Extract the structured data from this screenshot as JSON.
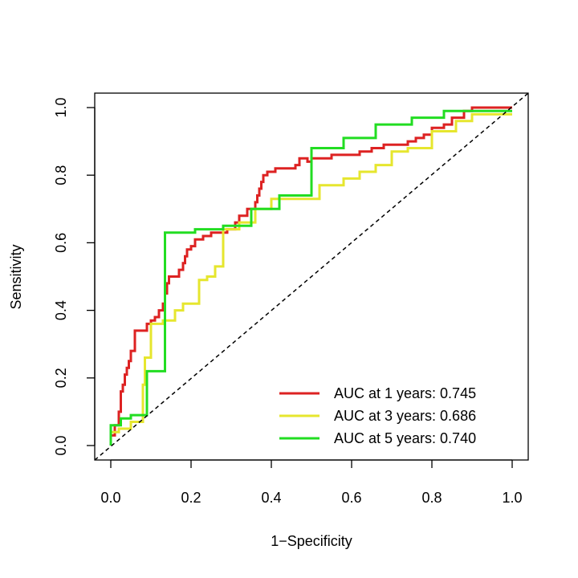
{
  "chart_data": {
    "type": "line",
    "title": "",
    "xlabel": "1−Specificity",
    "ylabel": "Sensitivity",
    "xlim": [
      0,
      1
    ],
    "ylim": [
      0,
      1
    ],
    "x_ticks": [
      "0.0",
      "0.2",
      "0.4",
      "0.6",
      "0.8",
      "1.0"
    ],
    "y_ticks": [
      "0.0",
      "0.2",
      "0.4",
      "0.6",
      "0.8",
      "1.0"
    ],
    "diagonal": true,
    "legend_position": "bottom-right",
    "series": [
      {
        "name": "AUC at 1 years: 0.745",
        "color": "#dd2222",
        "points": [
          [
            0,
            0
          ],
          [
            0,
            0.03
          ],
          [
            0.01,
            0.03
          ],
          [
            0.01,
            0.06
          ],
          [
            0.02,
            0.06
          ],
          [
            0.02,
            0.1
          ],
          [
            0.025,
            0.1
          ],
          [
            0.025,
            0.16
          ],
          [
            0.03,
            0.16
          ],
          [
            0.03,
            0.18
          ],
          [
            0.035,
            0.18
          ],
          [
            0.035,
            0.21
          ],
          [
            0.04,
            0.21
          ],
          [
            0.04,
            0.23
          ],
          [
            0.045,
            0.23
          ],
          [
            0.045,
            0.25
          ],
          [
            0.05,
            0.25
          ],
          [
            0.05,
            0.28
          ],
          [
            0.06,
            0.28
          ],
          [
            0.06,
            0.34
          ],
          [
            0.09,
            0.34
          ],
          [
            0.09,
            0.36
          ],
          [
            0.1,
            0.36
          ],
          [
            0.1,
            0.37
          ],
          [
            0.11,
            0.37
          ],
          [
            0.11,
            0.38
          ],
          [
            0.12,
            0.38
          ],
          [
            0.12,
            0.4
          ],
          [
            0.13,
            0.4
          ],
          [
            0.13,
            0.42
          ],
          [
            0.135,
            0.42
          ],
          [
            0.135,
            0.45
          ],
          [
            0.14,
            0.45
          ],
          [
            0.14,
            0.48
          ],
          [
            0.145,
            0.48
          ],
          [
            0.145,
            0.5
          ],
          [
            0.17,
            0.5
          ],
          [
            0.17,
            0.52
          ],
          [
            0.18,
            0.52
          ],
          [
            0.18,
            0.54
          ],
          [
            0.185,
            0.54
          ],
          [
            0.185,
            0.56
          ],
          [
            0.19,
            0.56
          ],
          [
            0.19,
            0.58
          ],
          [
            0.2,
            0.58
          ],
          [
            0.2,
            0.59
          ],
          [
            0.21,
            0.59
          ],
          [
            0.21,
            0.61
          ],
          [
            0.23,
            0.61
          ],
          [
            0.23,
            0.62
          ],
          [
            0.25,
            0.62
          ],
          [
            0.25,
            0.63
          ],
          [
            0.29,
            0.63
          ],
          [
            0.29,
            0.64
          ],
          [
            0.31,
            0.64
          ],
          [
            0.31,
            0.66
          ],
          [
            0.32,
            0.66
          ],
          [
            0.32,
            0.68
          ],
          [
            0.34,
            0.68
          ],
          [
            0.34,
            0.7
          ],
          [
            0.36,
            0.7
          ],
          [
            0.36,
            0.72
          ],
          [
            0.365,
            0.72
          ],
          [
            0.365,
            0.74
          ],
          [
            0.37,
            0.74
          ],
          [
            0.37,
            0.76
          ],
          [
            0.375,
            0.76
          ],
          [
            0.375,
            0.78
          ],
          [
            0.38,
            0.78
          ],
          [
            0.38,
            0.8
          ],
          [
            0.39,
            0.8
          ],
          [
            0.39,
            0.81
          ],
          [
            0.41,
            0.81
          ],
          [
            0.41,
            0.82
          ],
          [
            0.46,
            0.82
          ],
          [
            0.46,
            0.83
          ],
          [
            0.47,
            0.83
          ],
          [
            0.47,
            0.85
          ],
          [
            0.49,
            0.85
          ],
          [
            0.49,
            0.84
          ],
          [
            0.5,
            0.84
          ],
          [
            0.5,
            0.85
          ],
          [
            0.55,
            0.85
          ],
          [
            0.55,
            0.86
          ],
          [
            0.62,
            0.86
          ],
          [
            0.62,
            0.87
          ],
          [
            0.65,
            0.87
          ],
          [
            0.65,
            0.88
          ],
          [
            0.68,
            0.88
          ],
          [
            0.68,
            0.89
          ],
          [
            0.74,
            0.89
          ],
          [
            0.74,
            0.9
          ],
          [
            0.76,
            0.9
          ],
          [
            0.76,
            0.91
          ],
          [
            0.78,
            0.91
          ],
          [
            0.78,
            0.92
          ],
          [
            0.8,
            0.92
          ],
          [
            0.8,
            0.94
          ],
          [
            0.83,
            0.94
          ],
          [
            0.83,
            0.95
          ],
          [
            0.85,
            0.95
          ],
          [
            0.85,
            0.97
          ],
          [
            0.88,
            0.97
          ],
          [
            0.88,
            0.99
          ],
          [
            0.9,
            0.99
          ],
          [
            0.9,
            1.0
          ],
          [
            1.0,
            1.0
          ]
        ]
      },
      {
        "name": "AUC at 3 years: 0.686",
        "color": "#e6e62e",
        "points": [
          [
            0,
            0
          ],
          [
            0,
            0.04
          ],
          [
            0.02,
            0.04
          ],
          [
            0.02,
            0.05
          ],
          [
            0.05,
            0.05
          ],
          [
            0.05,
            0.07
          ],
          [
            0.08,
            0.07
          ],
          [
            0.08,
            0.18
          ],
          [
            0.085,
            0.18
          ],
          [
            0.085,
            0.26
          ],
          [
            0.1,
            0.26
          ],
          [
            0.1,
            0.36
          ],
          [
            0.13,
            0.36
          ],
          [
            0.13,
            0.37
          ],
          [
            0.16,
            0.37
          ],
          [
            0.16,
            0.4
          ],
          [
            0.18,
            0.4
          ],
          [
            0.18,
            0.42
          ],
          [
            0.22,
            0.42
          ],
          [
            0.22,
            0.49
          ],
          [
            0.24,
            0.49
          ],
          [
            0.24,
            0.5
          ],
          [
            0.26,
            0.5
          ],
          [
            0.26,
            0.53
          ],
          [
            0.28,
            0.53
          ],
          [
            0.28,
            0.64
          ],
          [
            0.32,
            0.64
          ],
          [
            0.32,
            0.66
          ],
          [
            0.36,
            0.66
          ],
          [
            0.36,
            0.7
          ],
          [
            0.4,
            0.7
          ],
          [
            0.4,
            0.73
          ],
          [
            0.52,
            0.73
          ],
          [
            0.52,
            0.77
          ],
          [
            0.58,
            0.77
          ],
          [
            0.58,
            0.79
          ],
          [
            0.62,
            0.79
          ],
          [
            0.62,
            0.81
          ],
          [
            0.66,
            0.81
          ],
          [
            0.66,
            0.83
          ],
          [
            0.7,
            0.83
          ],
          [
            0.7,
            0.87
          ],
          [
            0.74,
            0.87
          ],
          [
            0.74,
            0.88
          ],
          [
            0.8,
            0.88
          ],
          [
            0.8,
            0.93
          ],
          [
            0.86,
            0.93
          ],
          [
            0.86,
            0.96
          ],
          [
            0.9,
            0.96
          ],
          [
            0.9,
            0.98
          ],
          [
            1.0,
            0.98
          ]
        ]
      },
      {
        "name": "AUC at 5 years: 0.740",
        "color": "#22dd22",
        "points": [
          [
            0,
            0
          ],
          [
            0,
            0.06
          ],
          [
            0.025,
            0.06
          ],
          [
            0.025,
            0.08
          ],
          [
            0.05,
            0.08
          ],
          [
            0.05,
            0.09
          ],
          [
            0.09,
            0.09
          ],
          [
            0.09,
            0.22
          ],
          [
            0.135,
            0.22
          ],
          [
            0.135,
            0.63
          ],
          [
            0.21,
            0.63
          ],
          [
            0.21,
            0.64
          ],
          [
            0.28,
            0.64
          ],
          [
            0.28,
            0.65
          ],
          [
            0.35,
            0.65
          ],
          [
            0.35,
            0.7
          ],
          [
            0.42,
            0.7
          ],
          [
            0.42,
            0.74
          ],
          [
            0.5,
            0.74
          ],
          [
            0.5,
            0.88
          ],
          [
            0.58,
            0.88
          ],
          [
            0.58,
            0.91
          ],
          [
            0.66,
            0.91
          ],
          [
            0.66,
            0.95
          ],
          [
            0.75,
            0.95
          ],
          [
            0.75,
            0.97
          ],
          [
            0.83,
            0.97
          ],
          [
            0.83,
            0.99
          ],
          [
            0.91,
            0.99
          ],
          [
            0.91,
            0.99
          ],
          [
            1.0,
            0.99
          ]
        ]
      }
    ]
  }
}
